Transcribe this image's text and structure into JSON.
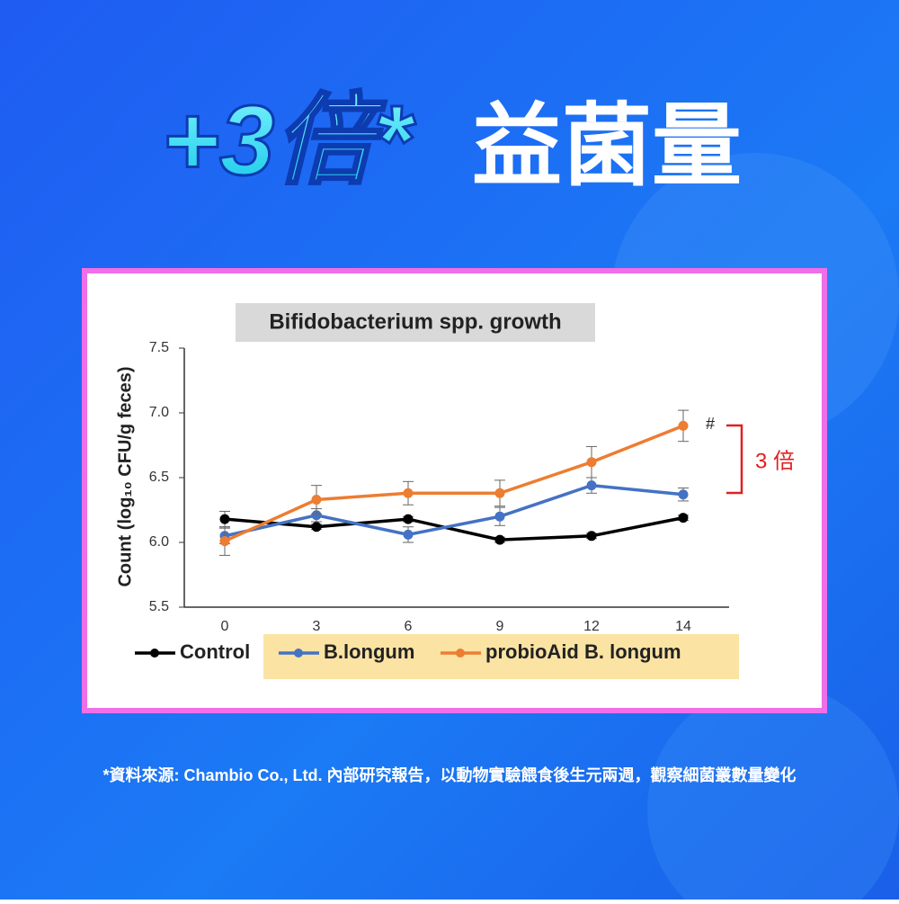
{
  "headline_accent": "+3倍*",
  "headline_main": "益菌量",
  "footnote": "*資料來源: Chambio Co., Ltd. 內部研究報告，以動物實驗餵食後生元兩週，觀察細菌叢數量變化",
  "chart_data": {
    "type": "line",
    "title": "Bifidobacterium spp. growth",
    "y_label": "Count (log₁₀ CFU/g feces)",
    "categories": [
      "0",
      "3",
      "6",
      "9",
      "12",
      "14"
    ],
    "ylim": [
      5.5,
      7.5
    ],
    "yticks": [
      7.5,
      {
        "value": 7,
        "label": "7.0"
      },
      6.5,
      {
        "value": 6,
        "label": "6.0"
      },
      5.5
    ],
    "series": [
      {
        "name": "Control",
        "color": "#000000",
        "values": [
          6.18,
          6.12,
          6.18,
          6.02,
          6.05,
          6.19
        ],
        "errors": [
          0.06,
          0.02,
          0.02,
          0.02,
          0.02,
          0.02
        ]
      },
      {
        "name": "B.longum",
        "color": "#4472c4",
        "values": [
          6.05,
          6.21,
          6.06,
          6.2,
          6.44,
          6.37
        ],
        "errors": [
          0.06,
          0.05,
          0.06,
          0.07,
          0.06,
          0.05
        ]
      },
      {
        "name": "probioAid B. longum",
        "color": "#ed7d31",
        "values": [
          6.01,
          6.33,
          6.38,
          6.38,
          6.62,
          6.9
        ],
        "errors": [
          0.11,
          0.11,
          0.09,
          0.1,
          0.12,
          0.12
        ]
      }
    ],
    "annotations": [
      "#",
      "3 倍"
    ]
  }
}
